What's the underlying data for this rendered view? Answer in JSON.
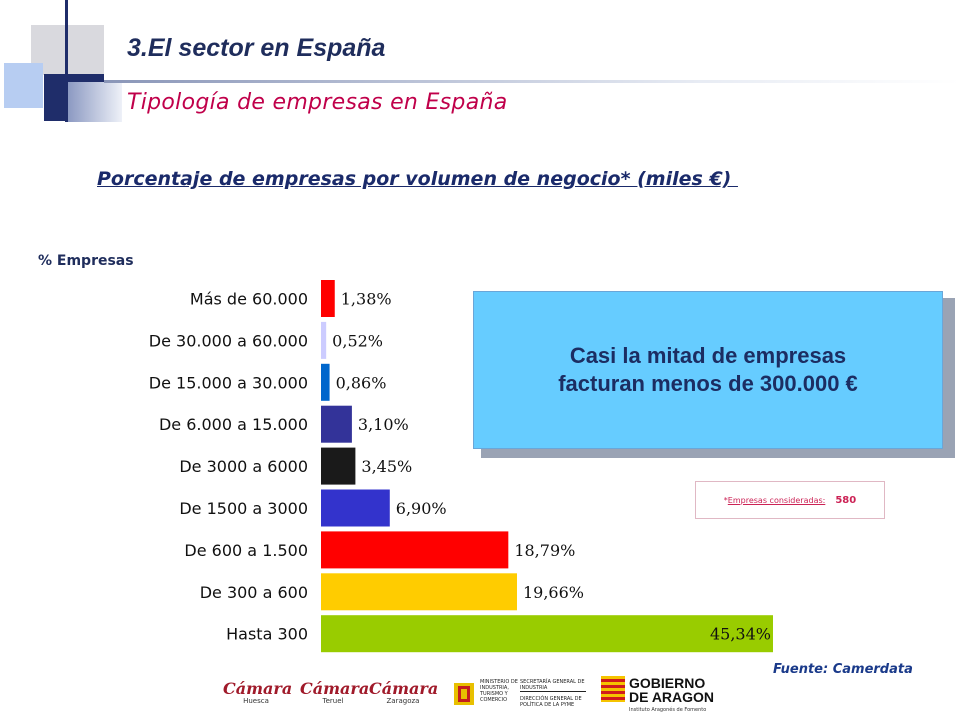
{
  "header": {
    "section_title": "3.El sector en España",
    "subtitle": "Tipología de empresas en España"
  },
  "chart_data": {
    "type": "bar",
    "orientation": "horizontal",
    "title": "Porcentaje de empresas por volumen de negocio* (miles €) ",
    "ylabel": "% Empresas",
    "categories": [
      "Más de 60.000",
      "De 30.000 a 60.000",
      "De 15.000 a 30.000",
      "De 6.000 a 15.000",
      "De 3000 a 6000",
      "De 1500 a 3000",
      "De 600 a 1.500",
      "De 300 a 600",
      "Hasta 300"
    ],
    "values": [
      1.38,
      0.52,
      0.86,
      3.1,
      3.45,
      6.9,
      18.79,
      19.66,
      45.34
    ],
    "labels": [
      "1,38%",
      "0,52%",
      "0,86%",
      "3,10%",
      "3,45%",
      "6,90%",
      "18,79%",
      "19,66%",
      "45,34%"
    ],
    "colors": [
      "#ff0000",
      "#ccccff",
      "#0066cc",
      "#333399",
      "#1a1a1a",
      "#3333cc",
      "#ff0000",
      "#ffcc00",
      "#99cc00"
    ],
    "xlim": [
      0,
      45.34
    ],
    "grid": false,
    "legend": "none"
  },
  "callout": {
    "text": "Casi la  mitad de empresas\nfacturan menos de 300.000 €"
  },
  "note": {
    "prefix": "*",
    "label": "Empresas consideradas:",
    "value": "580"
  },
  "source": "Fuente: Camerdata",
  "logos": {
    "camara_word": "Cámara",
    "camara_huesca": "Huesca",
    "camara_teruel": "Teruel",
    "camara_zaragoza": "Zaragoza",
    "ministerio": "MINISTERIO DE INDUSTRIA, TURISMO Y COMERCIO",
    "secretaria": "SECRETARÍA GENERAL DE INDUSTRIA",
    "direccion": "DIRECCIÓN GENERAL DE POLÍTICA DE LA PYME",
    "gobierno_line1": "GOBIERNO",
    "gobierno_line2": "DE ARAGON",
    "iaf": "Instituto Aragonés de Fomento"
  },
  "colors": {
    "title_blue": "#1f2d5c",
    "subtitle_red": "#c0004a",
    "callout_bg": "#66ccff"
  }
}
